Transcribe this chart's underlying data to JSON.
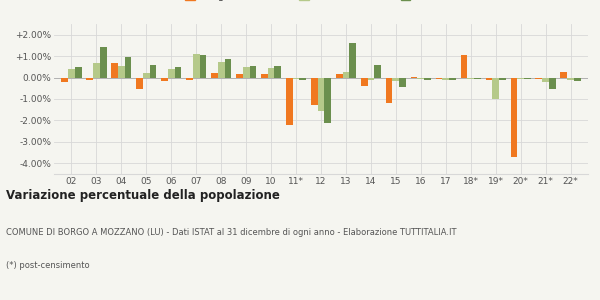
{
  "years": [
    "02",
    "03",
    "04",
    "05",
    "06",
    "07",
    "08",
    "09",
    "10",
    "11*",
    "12",
    "13",
    "14",
    "15",
    "16",
    "17",
    "18*",
    "19*",
    "20*",
    "21*",
    "22*"
  ],
  "borgo": [
    -0.2,
    -0.1,
    0.7,
    -0.55,
    -0.15,
    -0.1,
    0.2,
    0.15,
    0.15,
    -2.2,
    -1.3,
    0.15,
    -0.4,
    -1.2,
    0.05,
    -0.05,
    1.05,
    -0.1,
    -3.7,
    -0.05,
    0.25
  ],
  "provincia": [
    0.4,
    0.7,
    0.55,
    0.22,
    0.4,
    1.1,
    0.75,
    0.5,
    0.45,
    -0.05,
    -1.55,
    0.25,
    -0.1,
    -0.18,
    -0.08,
    -0.1,
    -0.05,
    -1.0,
    -0.05,
    -0.22,
    -0.1
  ],
  "toscana": [
    0.5,
    1.45,
    0.95,
    0.6,
    0.5,
    1.05,
    0.85,
    0.55,
    0.55,
    -0.1,
    -2.1,
    1.6,
    0.6,
    -0.45,
    -0.12,
    -0.1,
    -0.08,
    -0.12,
    -0.08,
    -0.55,
    -0.15
  ],
  "color_borgo": "#f07820",
  "color_provincia": "#b5c98a",
  "color_toscana": "#6b8f4e",
  "title": "Variazione percentuale della popolazione",
  "subtitle": "COMUNE DI BORGO A MOZZANO (LU) - Dati ISTAT al 31 dicembre di ogni anno - Elaborazione TUTTITALIA.IT",
  "footnote": "(*) post-censimento",
  "ylim": [
    -4.5,
    2.5
  ],
  "yticks": [
    -4.0,
    -3.0,
    -2.0,
    -1.0,
    0.0,
    1.0,
    2.0
  ],
  "ytick_labels": [
    "-4.00%",
    "-3.00%",
    "-2.00%",
    "-1.00%",
    "0.00%",
    "+1.00%",
    "+2.00%"
  ],
  "bg_color": "#f5f5f0",
  "grid_color": "#d8d8d8"
}
